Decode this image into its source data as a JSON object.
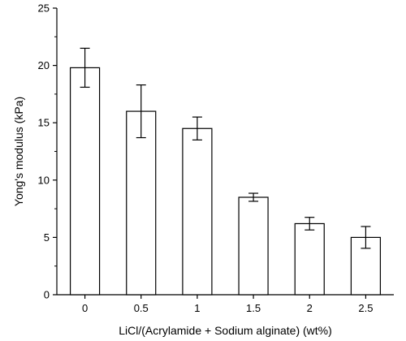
{
  "chart_data": {
    "type": "bar",
    "categories": [
      "0",
      "0.5",
      "1",
      "1.5",
      "2",
      "2.5"
    ],
    "values": [
      19.8,
      16.0,
      14.5,
      8.5,
      6.2,
      5.0
    ],
    "errors": [
      1.7,
      2.3,
      1.0,
      0.35,
      0.55,
      0.95
    ],
    "xlabel": "LiCl/(Acrylamide + Sodium alginate) (wt%)",
    "ylabel": "Yong's modulus (kPa)",
    "ylim": [
      0,
      25
    ],
    "yticks": [
      "0",
      "5",
      "10",
      "15",
      "20",
      "25"
    ],
    "grid": false,
    "bar_fill": "#ffffff",
    "bar_stroke": "#000000"
  }
}
